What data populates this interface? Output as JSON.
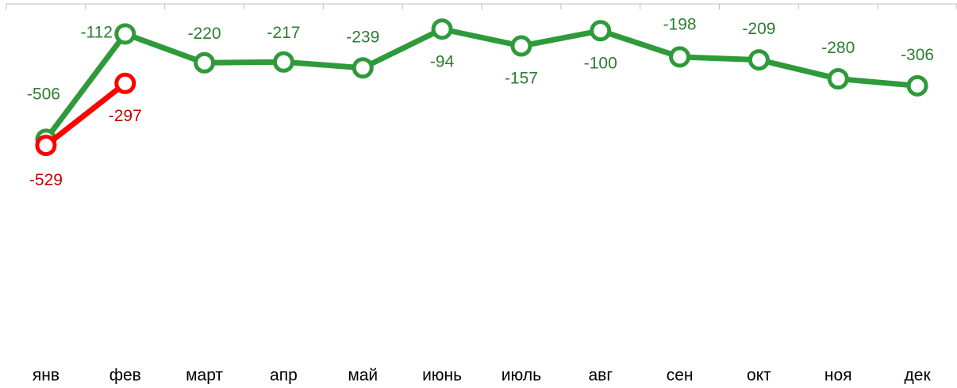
{
  "chart_data": {
    "type": "line",
    "categories": [
      "янв",
      "фев",
      "март",
      "апр",
      "май",
      "июнь",
      "июль",
      "авг",
      "сен",
      "окт",
      "ноя",
      "дек"
    ],
    "series": [
      {
        "color": "#2e9a3a",
        "label_color": "#2e7d32",
        "values": [
          -506,
          -112,
          -220,
          -217,
          -239,
          -94,
          -157,
          -100,
          -198,
          -209,
          -280,
          -306
        ]
      },
      {
        "color": "#ff0000",
        "label_color": "#c00000",
        "values": [
          -529,
          -297,
          null,
          null,
          null,
          null,
          null,
          null,
          null,
          null,
          null,
          null
        ]
      }
    ],
    "ylim": [
      -1300,
      0
    ]
  }
}
